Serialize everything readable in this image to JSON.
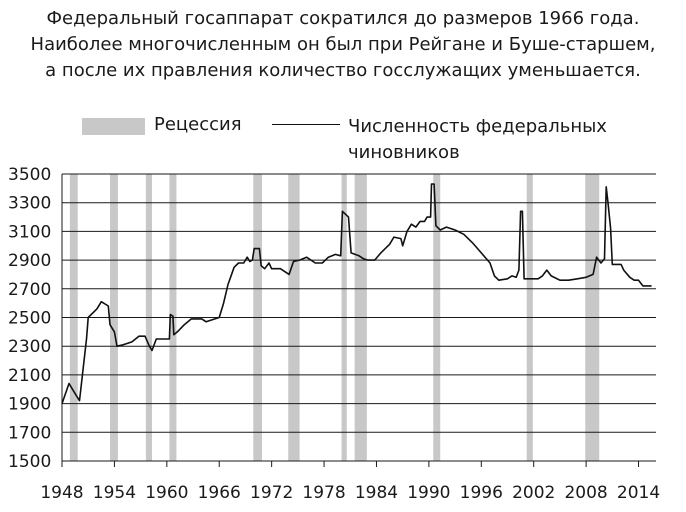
{
  "chart_data": {
    "type": "line",
    "title_lines": [
      "Федеральный госаппарат сократился до размеров 1966 года.",
      "Наиболее многочисленным он был при Рейгане и Буше-старшем,",
      "а после их правления количество госслужащих уменьшается."
    ],
    "legend": {
      "recession_label": "Рецессия",
      "series_label": "Численность федеральных чиновников"
    },
    "xlim": [
      1948,
      2016
    ],
    "ylim": [
      1500,
      3500
    ],
    "x_ticks": [
      1948,
      1954,
      1960,
      1966,
      1972,
      1978,
      1984,
      1990,
      1996,
      2002,
      2008,
      2014
    ],
    "y_ticks": [
      1500,
      1700,
      1900,
      2100,
      2300,
      2500,
      2700,
      2900,
      3100,
      3300,
      3500
    ],
    "grid": "horizontal",
    "colors": {
      "line": "#111111",
      "recession": "#c8c8c8",
      "grid": "#1a1a1a"
    },
    "recessions": [
      [
        1948.9,
        1949.8
      ],
      [
        1953.5,
        1954.4
      ],
      [
        1957.6,
        1958.3
      ],
      [
        1960.3,
        1961.1
      ],
      [
        1969.9,
        1970.9
      ],
      [
        1973.9,
        1975.2
      ],
      [
        1980.0,
        1980.6
      ],
      [
        1981.5,
        1982.9
      ],
      [
        1990.5,
        1991.3
      ],
      [
        2001.2,
        2001.9
      ],
      [
        2007.9,
        2009.5
      ]
    ],
    "series": [
      {
        "points": [
          [
            1948.0,
            1900
          ],
          [
            1948.8,
            2040
          ],
          [
            1949.5,
            1970
          ],
          [
            1950.0,
            1920
          ],
          [
            1950.8,
            2350
          ],
          [
            1951.0,
            2500
          ],
          [
            1952.0,
            2560
          ],
          [
            1952.5,
            2610
          ],
          [
            1953.3,
            2580
          ],
          [
            1953.5,
            2450
          ],
          [
            1954.0,
            2400
          ],
          [
            1954.3,
            2300
          ],
          [
            1955.0,
            2310
          ],
          [
            1956.0,
            2330
          ],
          [
            1956.8,
            2370
          ],
          [
            1957.5,
            2370
          ],
          [
            1958.0,
            2300
          ],
          [
            1958.3,
            2270
          ],
          [
            1958.8,
            2350
          ],
          [
            1959.5,
            2350
          ],
          [
            1960.0,
            2350
          ],
          [
            1960.3,
            2350
          ],
          [
            1960.4,
            2520
          ],
          [
            1960.7,
            2510
          ],
          [
            1960.8,
            2380
          ],
          [
            1961.2,
            2400
          ],
          [
            1962.0,
            2450
          ],
          [
            1962.8,
            2490
          ],
          [
            1963.5,
            2490
          ],
          [
            1964.0,
            2490
          ],
          [
            1964.5,
            2470
          ],
          [
            1965.5,
            2490
          ],
          [
            1966.0,
            2500
          ],
          [
            1966.5,
            2600
          ],
          [
            1967.0,
            2730
          ],
          [
            1967.7,
            2850
          ],
          [
            1968.2,
            2880
          ],
          [
            1968.8,
            2880
          ],
          [
            1969.2,
            2920
          ],
          [
            1969.5,
            2890
          ],
          [
            1969.8,
            2900
          ],
          [
            1970.0,
            2980
          ],
          [
            1970.6,
            2980
          ],
          [
            1970.8,
            2860
          ],
          [
            1971.2,
            2840
          ],
          [
            1971.7,
            2880
          ],
          [
            1972.0,
            2840
          ],
          [
            1973.0,
            2840
          ],
          [
            1974.0,
            2800
          ],
          [
            1974.5,
            2890
          ],
          [
            1975.2,
            2900
          ],
          [
            1976.0,
            2920
          ],
          [
            1977.0,
            2880
          ],
          [
            1977.8,
            2880
          ],
          [
            1978.5,
            2920
          ],
          [
            1979.3,
            2940
          ],
          [
            1979.9,
            2930
          ],
          [
            1980.1,
            3240
          ],
          [
            1980.8,
            3200
          ],
          [
            1981.1,
            2950
          ],
          [
            1982.0,
            2930
          ],
          [
            1982.5,
            2910
          ],
          [
            1983.0,
            2900
          ],
          [
            1983.8,
            2900
          ],
          [
            1984.5,
            2950
          ],
          [
            1985.5,
            3010
          ],
          [
            1986.0,
            3060
          ],
          [
            1986.8,
            3050
          ],
          [
            1987.0,
            3000
          ],
          [
            1987.5,
            3100
          ],
          [
            1988.0,
            3150
          ],
          [
            1988.5,
            3130
          ],
          [
            1989.0,
            3170
          ],
          [
            1989.5,
            3170
          ],
          [
            1989.8,
            3200
          ],
          [
            1990.2,
            3200
          ],
          [
            1990.3,
            3430
          ],
          [
            1990.6,
            3430
          ],
          [
            1990.8,
            3140
          ],
          [
            1991.3,
            3110
          ],
          [
            1992.0,
            3130
          ],
          [
            1993.0,
            3110
          ],
          [
            1994.0,
            3080
          ],
          [
            1995.0,
            3020
          ],
          [
            1996.0,
            2950
          ],
          [
            1997.0,
            2880
          ],
          [
            1997.5,
            2790
          ],
          [
            1998.0,
            2760
          ],
          [
            1999.0,
            2770
          ],
          [
            1999.5,
            2790
          ],
          [
            2000.0,
            2780
          ],
          [
            2000.3,
            2830
          ],
          [
            2000.5,
            3240
          ],
          [
            2000.7,
            3240
          ],
          [
            2000.9,
            2770
          ],
          [
            2001.5,
            2770
          ],
          [
            2002.5,
            2770
          ],
          [
            2003.0,
            2790
          ],
          [
            2003.5,
            2830
          ],
          [
            2004.0,
            2790
          ],
          [
            2005.0,
            2760
          ],
          [
            2006.0,
            2760
          ],
          [
            2007.0,
            2770
          ],
          [
            2008.0,
            2780
          ],
          [
            2008.8,
            2800
          ],
          [
            2009.2,
            2920
          ],
          [
            2009.7,
            2880
          ],
          [
            2010.1,
            2910
          ],
          [
            2010.3,
            3410
          ],
          [
            2010.5,
            3300
          ],
          [
            2010.8,
            3120
          ],
          [
            2011.0,
            2870
          ],
          [
            2011.5,
            2870
          ],
          [
            2012.0,
            2870
          ],
          [
            2012.3,
            2830
          ],
          [
            2013.0,
            2780
          ],
          [
            2013.5,
            2760
          ],
          [
            2014.0,
            2760
          ],
          [
            2014.5,
            2720
          ],
          [
            2015.0,
            2720
          ],
          [
            2015.5,
            2720
          ]
        ]
      }
    ]
  }
}
